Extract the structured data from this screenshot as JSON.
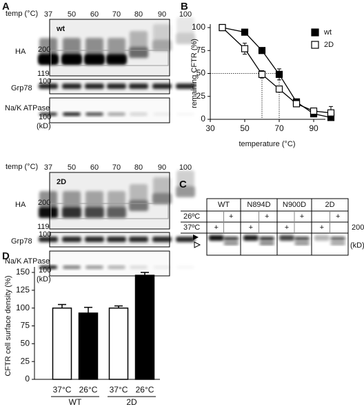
{
  "figure": {
    "panel_labels": [
      "A",
      "B",
      "C",
      "D"
    ]
  },
  "blots": [
    {
      "temp_label": "temp (°C)",
      "lanes": [
        "37",
        "50",
        "60",
        "70",
        "80",
        "90",
        "100"
      ],
      "sample": "wt",
      "rows": [
        "HA",
        "Grp78",
        "Na/K ATPase"
      ],
      "markers": [
        "200",
        "119",
        "100",
        "100"
      ],
      "unit": "(kD)"
    },
    {
      "temp_label": "temp (°C)",
      "lanes": [
        "37",
        "50",
        "60",
        "70",
        "80",
        "90",
        "100"
      ],
      "sample": "2D",
      "rows": [
        "HA",
        "Grp78",
        "Na/K ATPase"
      ],
      "markers": [
        "200",
        "119",
        "100",
        "100"
      ],
      "unit": "(kD)"
    }
  ],
  "gel_c": {
    "groups": [
      "WT",
      "N894D",
      "N900D",
      "2D"
    ],
    "conditions": [
      {
        "label": "26ºC",
        "sign": "+"
      },
      {
        "label": "37ºC",
        "sign": "+"
      }
    ],
    "marker": "200",
    "unit": "(kD)"
  },
  "chart_data": [
    {
      "type": "line",
      "xlabel": "temperature (°C)",
      "ylabel": "remaining CFTR (%)",
      "x": [
        37,
        50,
        60,
        70,
        80,
        90,
        100
      ],
      "series": [
        {
          "name": "wt",
          "color": "#000000",
          "values": [
            100,
            95,
            75,
            49,
            19,
            6,
            2
          ],
          "errors": [
            0,
            2,
            3,
            6,
            2,
            3,
            3
          ]
        },
        {
          "name": "2D",
          "color": "#ffffff",
          "values": [
            100,
            77,
            49,
            33,
            17,
            9,
            7
          ],
          "errors": [
            0,
            6,
            4,
            3,
            2,
            3,
            7
          ]
        }
      ],
      "xlim": [
        30,
        100
      ],
      "xticks": [
        30,
        50,
        70,
        90
      ],
      "ylim": [
        0,
        100
      ],
      "yticks": [
        0,
        25,
        50,
        75,
        100
      ],
      "reference_lines": {
        "y": 50,
        "x": [
          60,
          70
        ]
      },
      "legend": "upper right"
    },
    {
      "type": "bar",
      "ylabel": "CFTR cell surface density (%)",
      "categories": [
        "37°C",
        "26°C",
        "37°C",
        "26°C"
      ],
      "groups": [
        "WT",
        "2D"
      ],
      "values": [
        100,
        93,
        100,
        146
      ],
      "errors": [
        5,
        8,
        3,
        4
      ],
      "colors": [
        "#ffffff",
        "#000000",
        "#ffffff",
        "#000000"
      ],
      "ylim": [
        0,
        150
      ],
      "yticks": [
        0,
        25,
        50,
        75,
        100,
        125,
        150
      ]
    }
  ]
}
